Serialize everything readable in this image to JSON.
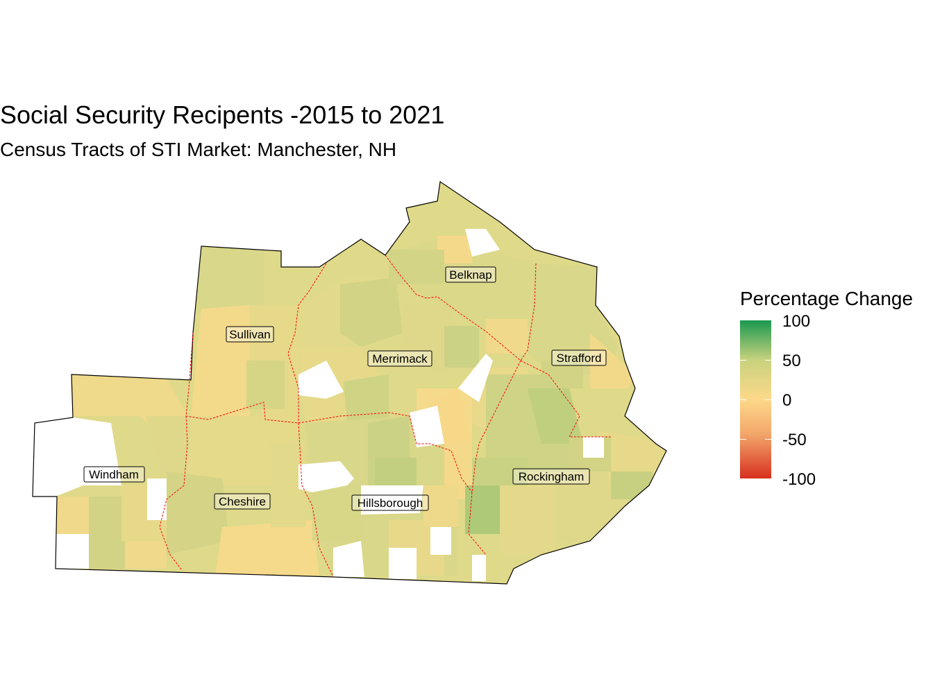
{
  "title": "Social Security Recipents -2015 to 2021",
  "subtitle": "Census Tracts of STI Market: Manchester, NH",
  "legend": {
    "title": "Percentage Change",
    "ticks": [
      "100",
      "50",
      "0",
      "-50",
      "-100"
    ],
    "scale": {
      "min": -100,
      "max": 100,
      "low_color": "#d7301f",
      "mid_color": "#fdd98a",
      "mid2_color": "#c8d27e",
      "high_color": "#1a9850"
    }
  },
  "map": {
    "county_boundary_color": "#ff0000",
    "outline_color": "#000000",
    "missing_color": "#ffffff",
    "counties": [
      {
        "name": "Belknap",
        "label": "Belknap",
        "value": 30
      },
      {
        "name": "Strafford",
        "label": "Strafford",
        "value": 25
      },
      {
        "name": "Sullivan",
        "label": "Sullivan",
        "value": 18
      },
      {
        "name": "Merrimack",
        "label": "Merrimack",
        "value": 30
      },
      {
        "name": "Windham",
        "label": "Windham",
        "value": 22
      },
      {
        "name": "Cheshire",
        "label": "Cheshire",
        "value": 22
      },
      {
        "name": "Hillsborough",
        "label": "Hillsborough",
        "value": 32
      },
      {
        "name": "Rockingham",
        "label": "Rockingham",
        "value": 35
      }
    ]
  }
}
